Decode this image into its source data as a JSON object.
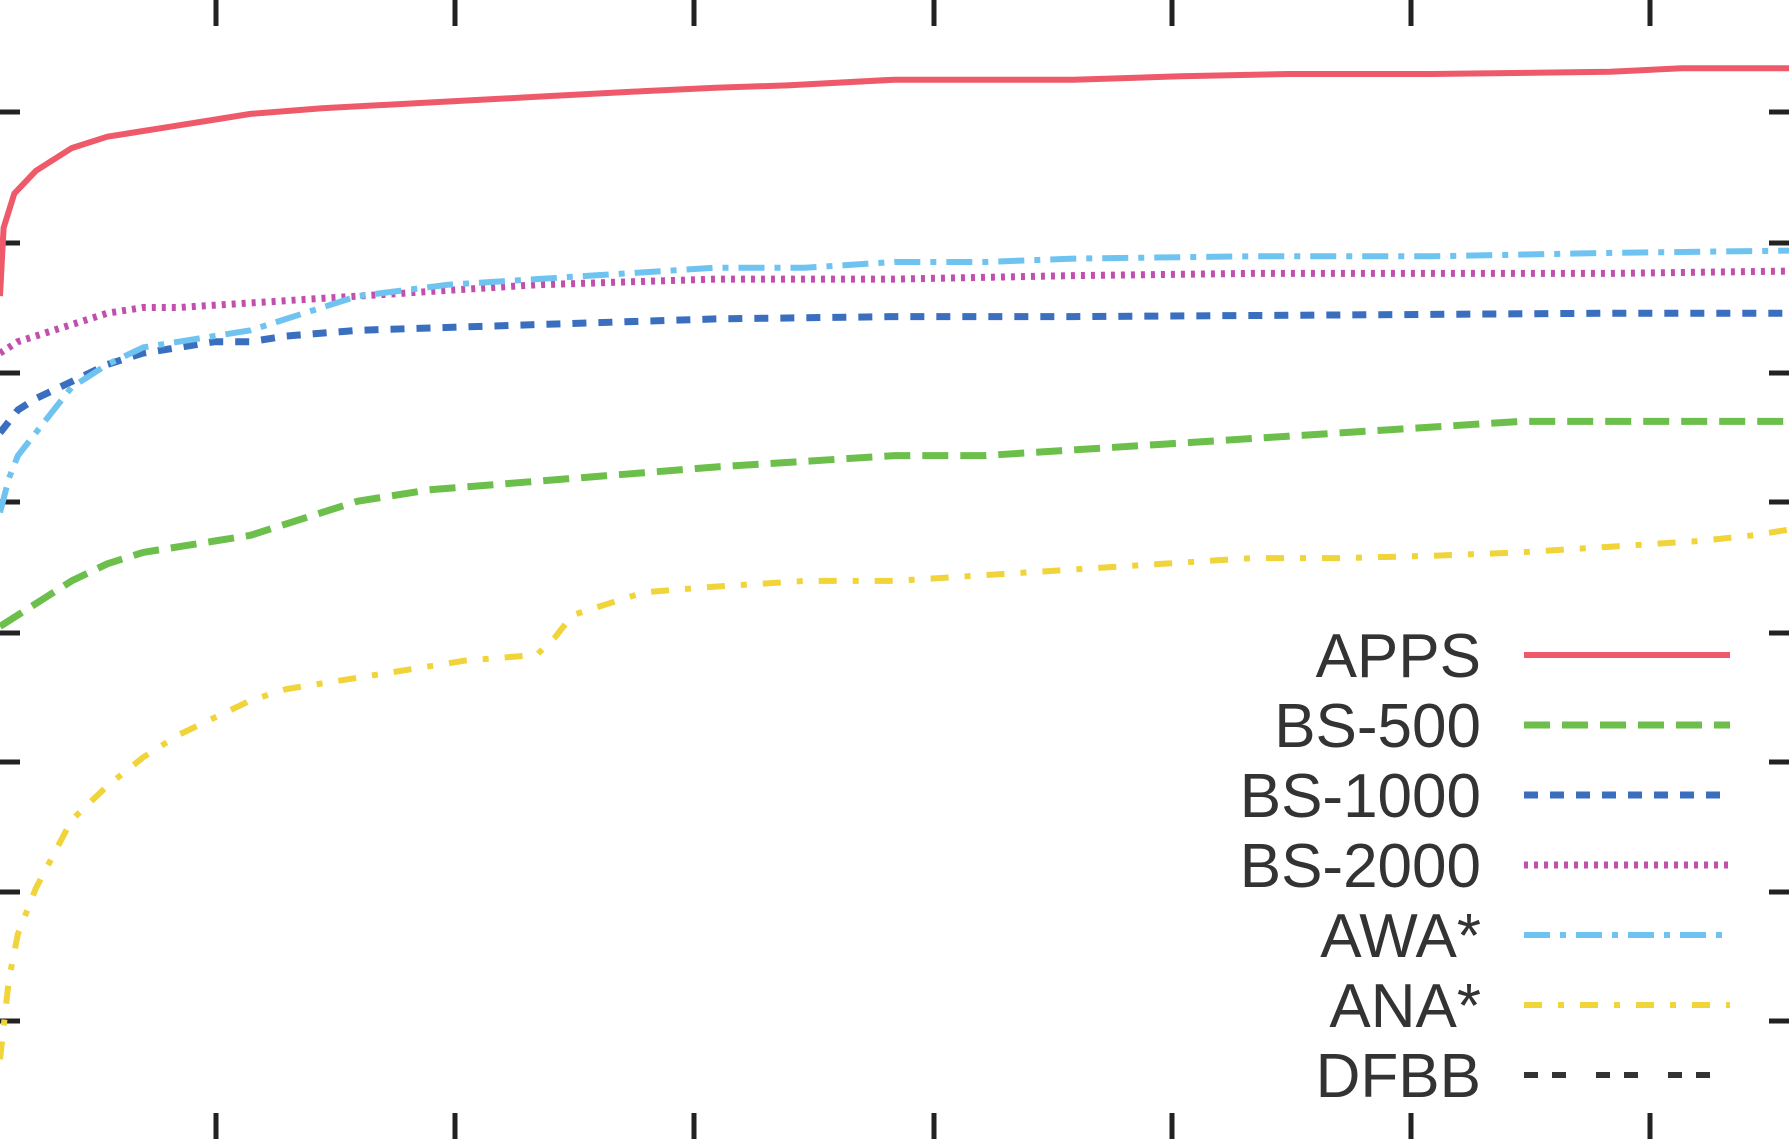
{
  "chart_data": {
    "type": "line",
    "title": "",
    "xlabel": "",
    "ylabel": "",
    "grid": false,
    "legend_placement": "bottom-right",
    "x_ticks_count": 7,
    "y_ticks_count": 8,
    "xlim": [
      0,
      100
    ],
    "ylim": [
      0,
      100
    ],
    "series": [
      {
        "name": "APPS",
        "color": "#ee5a6a",
        "style": "solid",
        "points": [
          [
            0,
            74
          ],
          [
            0.2,
            80
          ],
          [
            0.8,
            83
          ],
          [
            2,
            85
          ],
          [
            4,
            87
          ],
          [
            6,
            88
          ],
          [
            8,
            88.5
          ],
          [
            10,
            89
          ],
          [
            12,
            89.5
          ],
          [
            14,
            90
          ],
          [
            18,
            90.5
          ],
          [
            24,
            91
          ],
          [
            30,
            91.5
          ],
          [
            36,
            92
          ],
          [
            40,
            92.3
          ],
          [
            44,
            92.5
          ],
          [
            50,
            93
          ],
          [
            60,
            93
          ],
          [
            66,
            93.3
          ],
          [
            72,
            93.5
          ],
          [
            80,
            93.5
          ],
          [
            90,
            93.7
          ],
          [
            94,
            94
          ],
          [
            100,
            94
          ]
        ]
      },
      {
        "name": "BS-500",
        "color": "#6bbf4a",
        "style": "long-dash",
        "points": [
          [
            0,
            45
          ],
          [
            2,
            47
          ],
          [
            4,
            49
          ],
          [
            6,
            50.5
          ],
          [
            8,
            51.5
          ],
          [
            10,
            52
          ],
          [
            12,
            52.5
          ],
          [
            14,
            53
          ],
          [
            16,
            54
          ],
          [
            18,
            55
          ],
          [
            20,
            56
          ],
          [
            24,
            57
          ],
          [
            28,
            57.5
          ],
          [
            32,
            58
          ],
          [
            36,
            58.5
          ],
          [
            40,
            59
          ],
          [
            45,
            59.5
          ],
          [
            50,
            60
          ],
          [
            55,
            60
          ],
          [
            60,
            60.5
          ],
          [
            65,
            61
          ],
          [
            70,
            61.5
          ],
          [
            75,
            62
          ],
          [
            80,
            62.5
          ],
          [
            85,
            63
          ],
          [
            90,
            63
          ],
          [
            100,
            63
          ]
        ]
      },
      {
        "name": "BS-1000",
        "color": "#3a6ebe",
        "style": "dashed",
        "points": [
          [
            0,
            62
          ],
          [
            1,
            64
          ],
          [
            2,
            65
          ],
          [
            4,
            66.5
          ],
          [
            6,
            68
          ],
          [
            8,
            69
          ],
          [
            10,
            69.5
          ],
          [
            12,
            70
          ],
          [
            14,
            70
          ],
          [
            16,
            70.5
          ],
          [
            20,
            71
          ],
          [
            30,
            71.5
          ],
          [
            40,
            72
          ],
          [
            50,
            72.2
          ],
          [
            60,
            72.2
          ],
          [
            70,
            72.3
          ],
          [
            80,
            72.4
          ],
          [
            90,
            72.5
          ],
          [
            100,
            72.5
          ]
        ]
      },
      {
        "name": "BS-2000",
        "color": "#c24fae",
        "style": "dotted",
        "points": [
          [
            0,
            69
          ],
          [
            1,
            70
          ],
          [
            2,
            70.5
          ],
          [
            4,
            71.5
          ],
          [
            6,
            72.5
          ],
          [
            8,
            73
          ],
          [
            10,
            73
          ],
          [
            15,
            73.5
          ],
          [
            20,
            74
          ],
          [
            25,
            74.5
          ],
          [
            30,
            75
          ],
          [
            40,
            75.5
          ],
          [
            50,
            75.5
          ],
          [
            60,
            75.8
          ],
          [
            70,
            76
          ],
          [
            80,
            76
          ],
          [
            90,
            76
          ],
          [
            100,
            76.2
          ]
        ]
      },
      {
        "name": "AWA*",
        "color": "#6ec3f0",
        "style": "dash-dot",
        "points": [
          [
            0,
            55
          ],
          [
            0.5,
            58
          ],
          [
            1,
            60
          ],
          [
            2,
            62
          ],
          [
            3,
            64
          ],
          [
            4,
            66
          ],
          [
            6,
            68
          ],
          [
            8,
            69.5
          ],
          [
            10,
            70
          ],
          [
            12,
            70.5
          ],
          [
            14,
            71
          ],
          [
            16,
            72
          ],
          [
            18,
            73
          ],
          [
            20,
            74
          ],
          [
            25,
            75
          ],
          [
            30,
            75.5
          ],
          [
            35,
            76
          ],
          [
            40,
            76.5
          ],
          [
            45,
            76.5
          ],
          [
            50,
            77
          ],
          [
            55,
            77
          ],
          [
            60,
            77.3
          ],
          [
            70,
            77.5
          ],
          [
            80,
            77.5
          ],
          [
            90,
            77.8
          ],
          [
            100,
            78
          ]
        ]
      },
      {
        "name": "ANA*",
        "color": "#f1d33a",
        "style": "dash-dot-sparse",
        "points": [
          [
            0,
            7
          ],
          [
            0.5,
            14
          ],
          [
            1,
            18
          ],
          [
            2,
            22
          ],
          [
            3,
            25
          ],
          [
            4,
            28
          ],
          [
            6,
            31
          ],
          [
            8,
            33.5
          ],
          [
            10,
            35.5
          ],
          [
            12,
            37
          ],
          [
            14,
            38.5
          ],
          [
            16,
            39.5
          ],
          [
            18,
            40
          ],
          [
            20,
            40.5
          ],
          [
            22,
            41
          ],
          [
            24,
            41.5
          ],
          [
            26,
            42
          ],
          [
            30,
            42.5
          ],
          [
            31,
            44
          ],
          [
            32,
            46
          ],
          [
            34,
            47
          ],
          [
            36,
            48
          ],
          [
            40,
            48.5
          ],
          [
            45,
            49
          ],
          [
            50,
            49
          ],
          [
            55,
            49.5
          ],
          [
            60,
            50
          ],
          [
            65,
            50.5
          ],
          [
            70,
            51
          ],
          [
            75,
            51
          ],
          [
            80,
            51.2
          ],
          [
            85,
            51.5
          ],
          [
            90,
            52
          ],
          [
            95,
            52.5
          ],
          [
            98,
            53
          ],
          [
            100,
            53.5
          ]
        ]
      },
      {
        "name": "DFBB",
        "color": "#333333",
        "style": "dash-gap",
        "points": []
      }
    ]
  }
}
